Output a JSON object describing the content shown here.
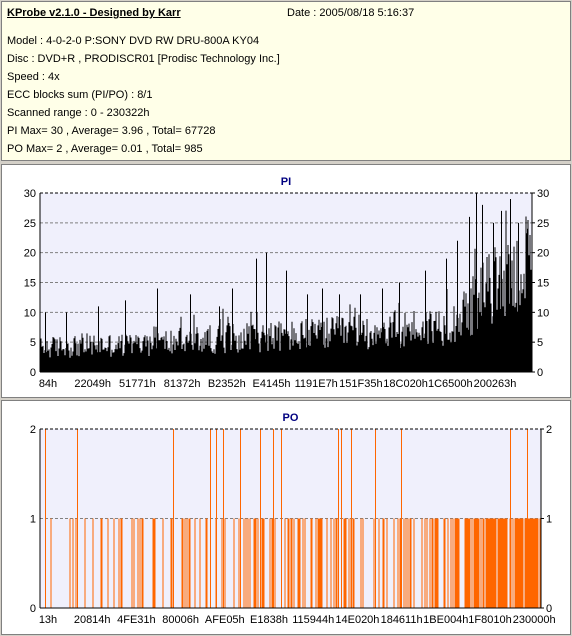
{
  "info": {
    "title": "KProbe v2.1.0 - Designed by Karr",
    "date": "Date : 2005/08/18 5:16:37",
    "lines": [
      "Model : 4-0-2-0 P:SONY    DVD RW DRU-800A  KY04",
      "Disc : DVD+R , PRODISCR01 [Prodisc Technology Inc.]",
      "Speed : 4x",
      "ECC blocks sum (PI/PO) : 8/1",
      "Scanned range : 0 - 230322h",
      "PI Max= 30 , Average= 3.96 , Total= 67728",
      "PO Max= 2 , Average= 0.01 , Total= 985"
    ]
  },
  "colors": {
    "pi_bars": "#000000",
    "po_bars": "#ff6600",
    "plot_bg": "#f0f0fc",
    "title": "#000080"
  },
  "chart_data": [
    {
      "type": "bar",
      "title": "PI",
      "ylim": [
        0,
        30
      ],
      "yticks": [
        0,
        5,
        10,
        15,
        20,
        25,
        30
      ],
      "xticks": [
        "84h",
        "22049h",
        "51771h",
        "81372h",
        "B2352h",
        "E4145h",
        "1191E7h",
        "151F35h",
        "18C020h",
        "1C6500h",
        "200263h"
      ],
      "grid": true,
      "x_range": [
        0,
        230322
      ],
      "baseline": [
        [
          0,
          4
        ],
        [
          20000,
          4.5
        ],
        [
          40000,
          4.5
        ],
        [
          60000,
          5
        ],
        [
          80000,
          5.5
        ],
        [
          100000,
          6
        ],
        [
          120000,
          6
        ],
        [
          140000,
          6.5
        ],
        [
          160000,
          7
        ],
        [
          180000,
          7.5
        ],
        [
          190000,
          8
        ],
        [
          200000,
          10
        ],
        [
          210000,
          14
        ],
        [
          220000,
          16
        ],
        [
          230322,
          18
        ]
      ],
      "peaks": [
        [
          2500,
          10
        ],
        [
          12000,
          10
        ],
        [
          27000,
          11
        ],
        [
          40000,
          12
        ],
        [
          55000,
          14
        ],
        [
          70000,
          13
        ],
        [
          84000,
          11
        ],
        [
          90000,
          14
        ],
        [
          101000,
          19
        ],
        [
          106000,
          20
        ],
        [
          115000,
          17
        ],
        [
          125000,
          13
        ],
        [
          132000,
          14
        ],
        [
          140000,
          13
        ],
        [
          150000,
          13
        ],
        [
          160000,
          14
        ],
        [
          168000,
          15
        ],
        [
          180000,
          17
        ],
        [
          190000,
          19
        ],
        [
          195000,
          22
        ],
        [
          201000,
          26
        ],
        [
          204000,
          30
        ],
        [
          207000,
          28
        ],
        [
          212000,
          25
        ],
        [
          216000,
          27
        ],
        [
          220000,
          29
        ],
        [
          224000,
          25
        ],
        [
          228000,
          24
        ]
      ]
    },
    {
      "type": "bar",
      "title": "PO",
      "ylim": [
        0,
        2
      ],
      "yticks": [
        0,
        1,
        2
      ],
      "xticks": [
        "13h",
        "20814h",
        "4FE31h",
        "80006h",
        "AFE05h",
        "E1838h",
        "115944h",
        "14E020h",
        "184611h",
        "1BE004h",
        "1F8010h",
        "230000h"
      ],
      "grid": true,
      "x_range": [
        0,
        230322
      ],
      "po_one_density": [
        [
          0,
          0.14
        ],
        [
          20000,
          0.18
        ],
        [
          50000,
          0.25
        ],
        [
          80000,
          0.3
        ],
        [
          100000,
          0.32
        ],
        [
          130000,
          0.35
        ],
        [
          160000,
          0.4
        ],
        [
          190000,
          0.5
        ],
        [
          210000,
          0.75
        ],
        [
          230322,
          0.9
        ]
      ],
      "po_two_events": [
        2200,
        17000,
        61000,
        78000,
        81000,
        84000,
        92000,
        101000,
        107000,
        111000,
        137000,
        138500,
        143000,
        154000,
        166000,
        216000,
        224000
      ]
    }
  ]
}
